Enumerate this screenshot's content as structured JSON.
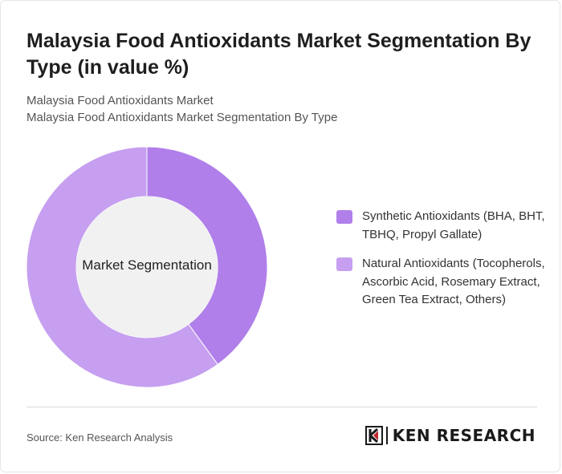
{
  "header": {
    "title": "Malaysia Food Antioxidants Market Segmentation By Type (in value %)",
    "subtitle_line1": "Malaysia Food Antioxidants Market",
    "subtitle_line2": "Malaysia Food Antioxidants Market Segmentation By Type"
  },
  "chart_data": {
    "type": "pie",
    "center_label": "Market Segmentation",
    "legend_position": "right",
    "slices": [
      {
        "name": "Synthetic Antioxidants (BHA, BHT, TBHQ, Propyl Gallate)",
        "value": 40,
        "color": "#b07fea"
      },
      {
        "name": "Natural Antioxidants (Tocopherols, Ascorbic Acid, Rosemary Extract, Green Tea Extract, Others)",
        "value": 60,
        "color": "#c69ff0"
      }
    ]
  },
  "footer": {
    "source": "Source: Ken Research Analysis",
    "brand": "KEN RESEARCH"
  }
}
